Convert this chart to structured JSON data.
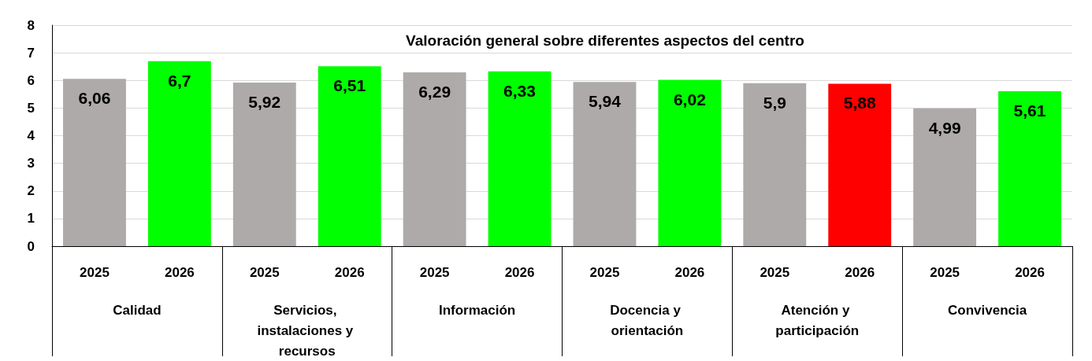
{
  "chart_data": {
    "type": "bar",
    "title": "Valoración general sobre diferentes aspectos del centro",
    "categories": [
      "2025",
      "2026",
      "2025",
      "2026",
      "2025",
      "2026",
      "2025",
      "2026",
      "2025",
      "2026",
      "2025",
      "2026"
    ],
    "values": [
      6.06,
      6.7,
      5.92,
      6.51,
      6.29,
      6.33,
      5.94,
      6.02,
      5.9,
      5.88,
      4.99,
      5.61
    ],
    "colors": [
      "#aeaaaa",
      "#00ff00",
      "#aeaaaa",
      "#00ff00",
      "#aeaaaa",
      "#00ff00",
      "#aeaaaa",
      "#00ff00",
      "#aeaaaa",
      "#ff0000",
      "#aeaaaa",
      "#00ff00"
    ],
    "annotations": [
      "Calidad",
      "Servicios, instalaciones y recursos",
      "Información",
      "Docencia y orientación",
      "Atención y participación",
      "Convivencia"
    ],
    "value_labels": [
      "6,06",
      "6,7",
      "5,92",
      "6,51",
      "6,29",
      "6,33",
      "5,94",
      "6,02",
      "5,9",
      "5,88",
      "4,99",
      "5,61"
    ],
    "ylim": [
      0,
      8
    ],
    "yticks": [
      0,
      1,
      2,
      3,
      4,
      5,
      6,
      7,
      8
    ],
    "grid": "y"
  }
}
